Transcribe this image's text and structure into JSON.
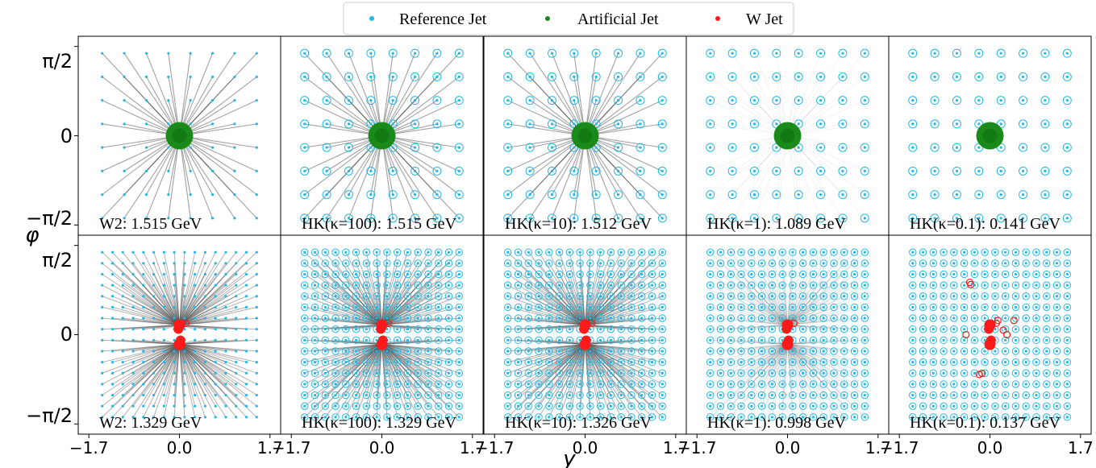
{
  "legend": {
    "items": [
      {
        "label": "Reference Jet",
        "color": "#22b8e6"
      },
      {
        "label": "Artificial Jet",
        "color": "#1a8a1a"
      },
      {
        "label": "W Jet",
        "color": "#ff1a1a"
      }
    ]
  },
  "axes": {
    "xlabel": "y",
    "ylabel": "φ",
    "xticks": [
      "−1.7",
      "0.0",
      "1.7"
    ],
    "yticks": [
      "π/2",
      "0",
      "−π/2"
    ]
  },
  "colors": {
    "reference": "#22b8e6",
    "artificial": "#1a8a1a",
    "wjet": "#ff1a1a",
    "lines": "#555555"
  },
  "chart_data": {
    "type": "scatter",
    "title": "",
    "xlabel": "y",
    "ylabel": "φ",
    "xlim": [
      -1.9,
      1.9
    ],
    "ylim": [
      -1.75,
      1.75
    ],
    "grid": false,
    "legend_position": "top-center",
    "rows": [
      {
        "target": "Artificial Jet",
        "reference_grid": 8,
        "target_points": [
          {
            "x": 0.0,
            "y": 0.0
          }
        ],
        "panels": [
          {
            "label": "W2: 1.515 GeV",
            "method": "W2",
            "value": 1.515,
            "unit": "GeV",
            "weight": 1.0,
            "rings": false
          },
          {
            "label": "HK(κ=100): 1.515 GeV",
            "method": "HK",
            "kappa": 100,
            "value": 1.515,
            "unit": "GeV",
            "weight": 1.0,
            "rings": true
          },
          {
            "label": "HK(κ=10): 1.512 GeV",
            "method": "HK",
            "kappa": 10,
            "value": 1.512,
            "unit": "GeV",
            "weight": 1.0,
            "rings": true
          },
          {
            "label": "HK(κ=1): 1.089 GeV",
            "method": "HK",
            "kappa": 1,
            "value": 1.089,
            "unit": "GeV",
            "weight": 0.12,
            "rings": true
          },
          {
            "label": "HK(κ=0.1): 0.141 GeV",
            "method": "HK",
            "kappa": 0.1,
            "value": 0.141,
            "unit": "GeV",
            "weight": 0.0,
            "rings": true
          }
        ]
      },
      {
        "target": "W Jet",
        "reference_grid": 16,
        "target_points": [
          {
            "x": 0.0,
            "y": 0.17
          },
          {
            "x": 0.0,
            "y": -0.17
          },
          {
            "x": -0.02,
            "y": 0.1
          },
          {
            "x": 0.02,
            "y": -0.1
          },
          {
            "x": 0.12,
            "y": 0.2
          }
        ],
        "panels": [
          {
            "label": "W2: 1.329 GeV",
            "method": "W2",
            "value": 1.329,
            "unit": "GeV",
            "weight": 1.0,
            "rings": false
          },
          {
            "label": "HK(κ=100): 1.329 GeV",
            "method": "HK",
            "kappa": 100,
            "value": 1.329,
            "unit": "GeV",
            "weight": 1.0,
            "rings": true
          },
          {
            "label": "HK(κ=10): 1.326 GeV",
            "method": "HK",
            "kappa": 10,
            "value": 1.326,
            "unit": "GeV",
            "weight": 1.0,
            "rings": true
          },
          {
            "label": "HK(κ=1): 0.998 GeV",
            "method": "HK",
            "kappa": 1,
            "value": 0.998,
            "unit": "GeV",
            "weight": 0.35,
            "rings": true
          },
          {
            "label": "HK(κ=0.1): 0.137 GeV",
            "method": "HK",
            "kappa": 0.1,
            "value": 0.137,
            "unit": "GeV",
            "weight": 0.0,
            "rings": true,
            "scattered_w_points": [
              {
                "x": -0.38,
                "y": 0.92
              },
              {
                "x": -0.36,
                "y": 0.88
              },
              {
                "x": 0.25,
                "y": 0.08
              },
              {
                "x": 0.32,
                "y": 0.0
              },
              {
                "x": 0.45,
                "y": 0.25
              },
              {
                "x": -0.45,
                "y": 0.0
              },
              {
                "x": -0.15,
                "y": -0.68
              },
              {
                "x": -0.2,
                "y": -0.7
              },
              {
                "x": 0.15,
                "y": 0.25
              }
            ]
          }
        ]
      }
    ]
  }
}
